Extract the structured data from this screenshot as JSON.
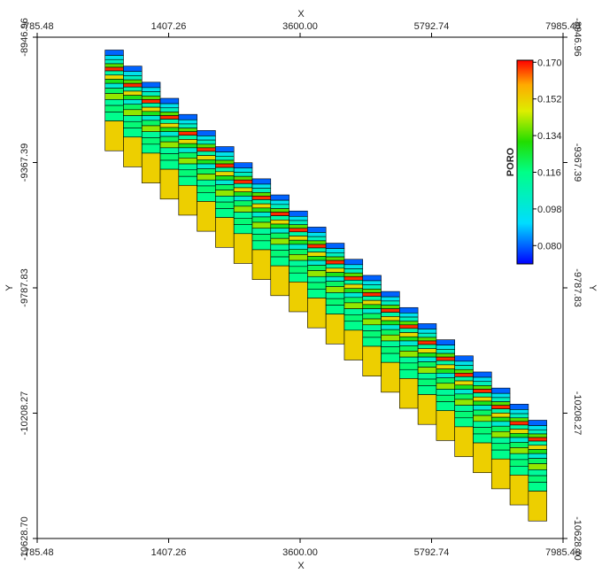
{
  "chart_data": {
    "type": "heatmap",
    "xlabel": "X",
    "ylabel": "Y",
    "xlim": [
      -785.48,
      7985.48
    ],
    "ylim": [
      -10628.7,
      -8946.96
    ],
    "x_ticks": [
      "-785.48",
      "1407.26",
      "3600.00",
      "5792.74",
      "7985.48"
    ],
    "y_ticks": [
      "-8946.96",
      "-9367.39",
      "-9787.83",
      "-10208.27",
      "-10628.70"
    ],
    "colorbar": {
      "title": "PORO",
      "min": 0.071,
      "max": 0.171,
      "ticks": [
        "0.170",
        "0.152",
        "0.134",
        "0.116",
        "0.098",
        "0.080"
      ]
    },
    "grid": {
      "columns": 24,
      "layers": 15,
      "x_first": 500,
      "x_step": 307,
      "top_first": -8990,
      "top_step": -54,
      "layer_values": [
        0.08,
        0.095,
        0.105,
        0.135,
        0.168,
        0.11,
        0.15,
        0.128,
        0.1,
        0.12,
        0.14,
        0.112,
        0.118,
        0.115,
        0.152
      ],
      "layer_thickness": [
        18,
        14,
        14,
        12,
        12,
        14,
        14,
        14,
        16,
        18,
        20,
        20,
        22,
        30,
        100
      ]
    }
  }
}
